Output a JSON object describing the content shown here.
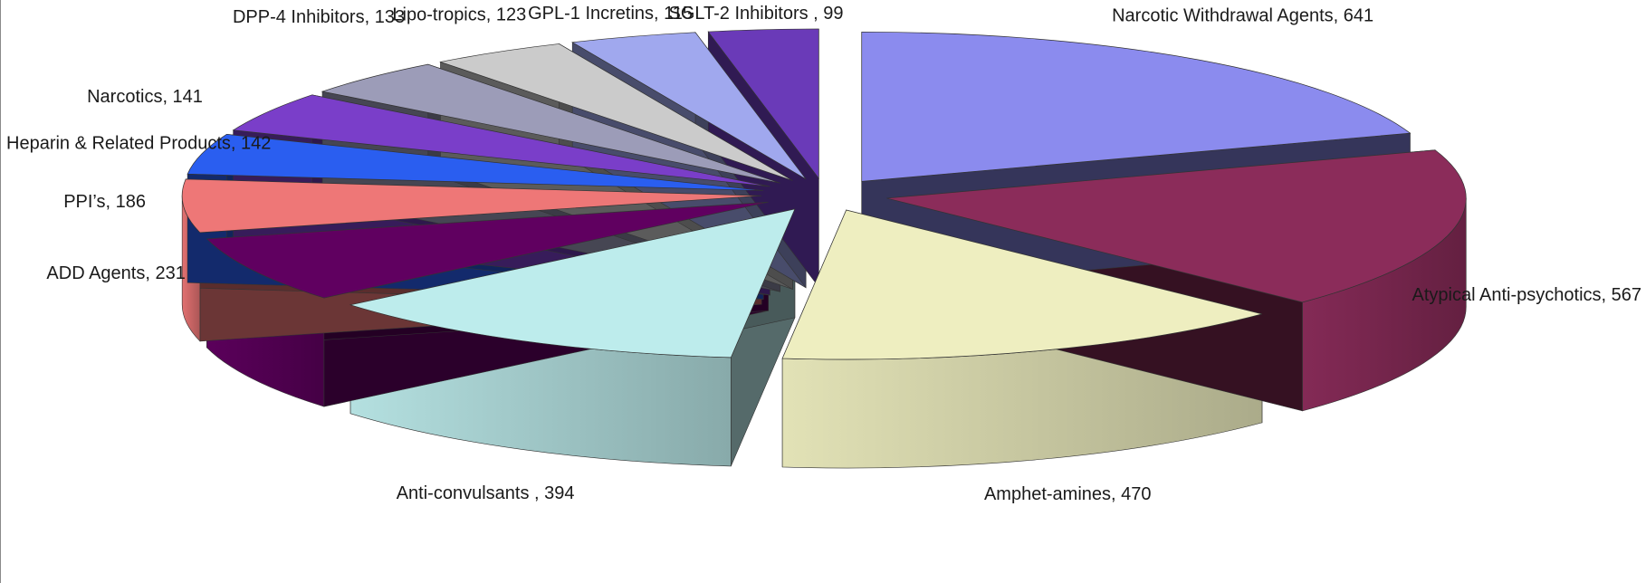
{
  "chart_data": {
    "type": "pie",
    "variant": "3d-exploded",
    "title": "",
    "slices": [
      {
        "label": "Narcotic Withdrawal Agents",
        "value": 641,
        "display": "Narcotic Withdrawal Agents, 641",
        "color": "#8b8bee",
        "label_pos": "top"
      },
      {
        "label": "Atypical Anti-psychotics",
        "value": 567,
        "display": "Atypical Anti-psychotics, 567",
        "color": "#8b2c5a",
        "label_pos": "right"
      },
      {
        "label": "Amphet-amines",
        "value": 470,
        "display": "Amphet-amines,  470",
        "color": "#eeeec0",
        "label_pos": "bottom"
      },
      {
        "label": "Anti-convulsants",
        "value": 394,
        "display": "Anti-convulsants  , 394",
        "color": "#bdecec",
        "label_pos": "bottom"
      },
      {
        "label": "ADD Agents",
        "value": 231,
        "display": "ADD Agents,  231",
        "color": "#600060",
        "label_pos": "left"
      },
      {
        "label": "PPI’s",
        "value": 186,
        "display": "PPI’s, 186",
        "color": "#ee7777",
        "label_pos": "left"
      },
      {
        "label": "Heparin & Related Products",
        "value": 142,
        "display": "Heparin & Related  Products, 142",
        "color": "#2a5ef0",
        "label_pos": "left"
      },
      {
        "label": "Narcotics",
        "value": 141,
        "display": "Narcotics, 141",
        "color": "#7a3ec9",
        "label_pos": "left"
      },
      {
        "label": "DPP-4 Inhibitors",
        "value": 133,
        "display": "DPP-4 Inhibitors, 133",
        "color": "#9c9cb8",
        "label_pos": "top"
      },
      {
        "label": "Lipo-tropics",
        "value": 123,
        "display": "Lipo-tropics, 123",
        "color": "#cbcbcb",
        "label_pos": "top"
      },
      {
        "label": "GPL-1 Incretins",
        "value": 115,
        "display": "GPL-1  Incretins, 115",
        "color": "#a0a8ee",
        "label_pos": "top"
      },
      {
        "label": "SGLT-2 Inhibitors",
        "value": 99,
        "display": "SGLT-2  Inhibitors  , 99",
        "color": "#6a3ab8",
        "label_pos": "top"
      }
    ],
    "legend": "none",
    "grid": false
  }
}
